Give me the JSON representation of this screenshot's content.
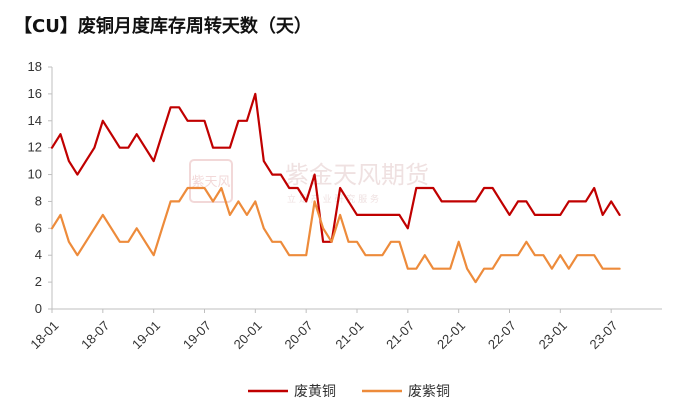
{
  "title": "【CU】废铜月度库存周转天数（天）",
  "watermark": {
    "logo_text": "紫天风",
    "company": "紫金天风期货",
    "sub": "立 足 产 业 研 究 服 务"
  },
  "colors": {
    "series1": "#c00000",
    "series2": "#ed8b3b",
    "axis": "#bfbfbf",
    "watermark": "#e8b9b9"
  },
  "chart_data": {
    "type": "line",
    "title": "【CU】废铜月度库存周转天数（天）",
    "xlabel": "",
    "ylabel": "",
    "ylim": [
      0,
      18
    ],
    "yticks": [
      0,
      2,
      4,
      6,
      8,
      10,
      12,
      14,
      16,
      18
    ],
    "x_tick_labels": [
      "18-01",
      "18-07",
      "19-01",
      "19-07",
      "20-01",
      "20-07",
      "21-01",
      "21-07",
      "22-01",
      "22-07",
      "23-01",
      "23-07"
    ],
    "x_start": "2018-01",
    "legend_position": "bottom",
    "grid": false,
    "series": [
      {
        "name": "废黄铜",
        "color": "#c00000",
        "values": [
          12,
          13,
          11,
          10,
          11,
          12,
          14,
          13,
          12,
          12,
          13,
          12,
          11,
          13,
          15,
          15,
          14,
          14,
          14,
          12,
          12,
          12,
          14,
          14,
          16,
          11,
          10,
          10,
          9,
          9,
          8,
          10,
          5,
          5,
          9,
          8,
          7,
          7,
          7,
          7,
          7,
          7,
          6,
          9,
          9,
          9,
          8,
          8,
          8,
          8,
          8,
          9,
          9,
          8,
          7,
          8,
          8,
          7,
          7,
          7,
          7,
          8,
          8,
          8,
          9,
          7,
          8,
          7
        ]
      },
      {
        "name": "废紫铜",
        "color": "#ed8b3b",
        "values": [
          6,
          7,
          5,
          4,
          5,
          6,
          7,
          6,
          5,
          5,
          6,
          5,
          4,
          6,
          8,
          8,
          9,
          9,
          9,
          8,
          9,
          7,
          8,
          7,
          8,
          6,
          5,
          5,
          4,
          4,
          4,
          8,
          6,
          5,
          7,
          5,
          5,
          4,
          4,
          4,
          5,
          5,
          3,
          3,
          4,
          3,
          3,
          3,
          5,
          3,
          2,
          3,
          3,
          4,
          4,
          4,
          5,
          4,
          4,
          3,
          4,
          3,
          4,
          4,
          4,
          3,
          3,
          3
        ]
      }
    ]
  }
}
